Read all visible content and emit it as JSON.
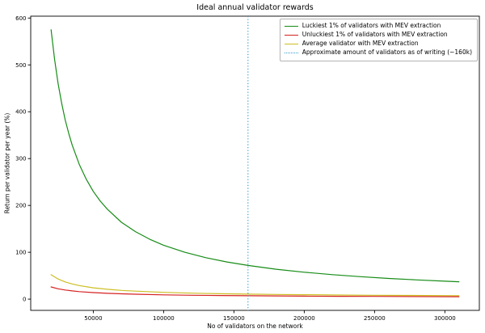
{
  "chart_data": {
    "type": "line",
    "title": "Ideal annual validator rewards",
    "xlabel": "No of validators on the network",
    "ylabel": "Return per validator per year (%)",
    "xlim": [
      5500,
      324500
    ],
    "ylim": [
      -24,
      604
    ],
    "xticks": [
      50000,
      100000,
      150000,
      200000,
      250000,
      300000
    ],
    "yticks": [
      0,
      100,
      200,
      300,
      400,
      500,
      600
    ],
    "grid": false,
    "legend_position": "upper right",
    "background_color": "#ffffff",
    "series": [
      {
        "name": "Luckiest 1% of validators with MEV extraction",
        "color": "#168c16",
        "style": "solid",
        "x": [
          20000,
          22500,
          25000,
          27500,
          30000,
          32500,
          35000,
          40000,
          45000,
          50000,
          55000,
          60000,
          70000,
          80000,
          90000,
          100000,
          115000,
          130000,
          145000,
          160000,
          180000,
          200000,
          220000,
          240000,
          260000,
          280000,
          300000,
          310000
        ],
        "y": [
          575,
          511,
          460,
          418,
          383,
          354,
          329,
          288,
          256,
          230,
          209,
          192,
          164,
          144,
          128,
          115,
          100,
          88.5,
          79.3,
          71.9,
          63.9,
          57.5,
          52.3,
          47.9,
          44.2,
          41.1,
          38.3,
          37.1
        ]
      },
      {
        "name": "Unluckiest 1% of validators with MEV extraction",
        "color": "#d62222",
        "style": "solid",
        "x": [
          20000,
          25000,
          30000,
          35000,
          40000,
          50000,
          60000,
          70000,
          80000,
          100000,
          120000,
          140000,
          160000,
          180000,
          200000,
          225000,
          250000,
          275000,
          310000
        ],
        "y": [
          26,
          22,
          19.4,
          17.5,
          16,
          13.9,
          12.4,
          11.3,
          10.5,
          9.2,
          8.3,
          7.7,
          7.2,
          6.8,
          6.4,
          6.1,
          5.8,
          5.5,
          5.2
        ]
      },
      {
        "name": "Average validator with MEV extraction",
        "color": "#ccbe22",
        "style": "solid",
        "x": [
          20000,
          25000,
          30000,
          35000,
          40000,
          50000,
          60000,
          70000,
          80000,
          100000,
          120000,
          140000,
          160000,
          180000,
          200000,
          225000,
          250000,
          275000,
          310000
        ],
        "y": [
          52,
          43,
          36.8,
          32.4,
          29,
          24.2,
          21,
          18.7,
          17,
          14.5,
          12.8,
          11.6,
          10.7,
          10,
          9.4,
          8.8,
          8.3,
          7.9,
          7.4
        ]
      },
      {
        "name": "Approximate amount of validators as of writing (~160k)",
        "color": "#3399cc",
        "style": "dotted",
        "type": "vline",
        "x": 160000
      }
    ]
  }
}
